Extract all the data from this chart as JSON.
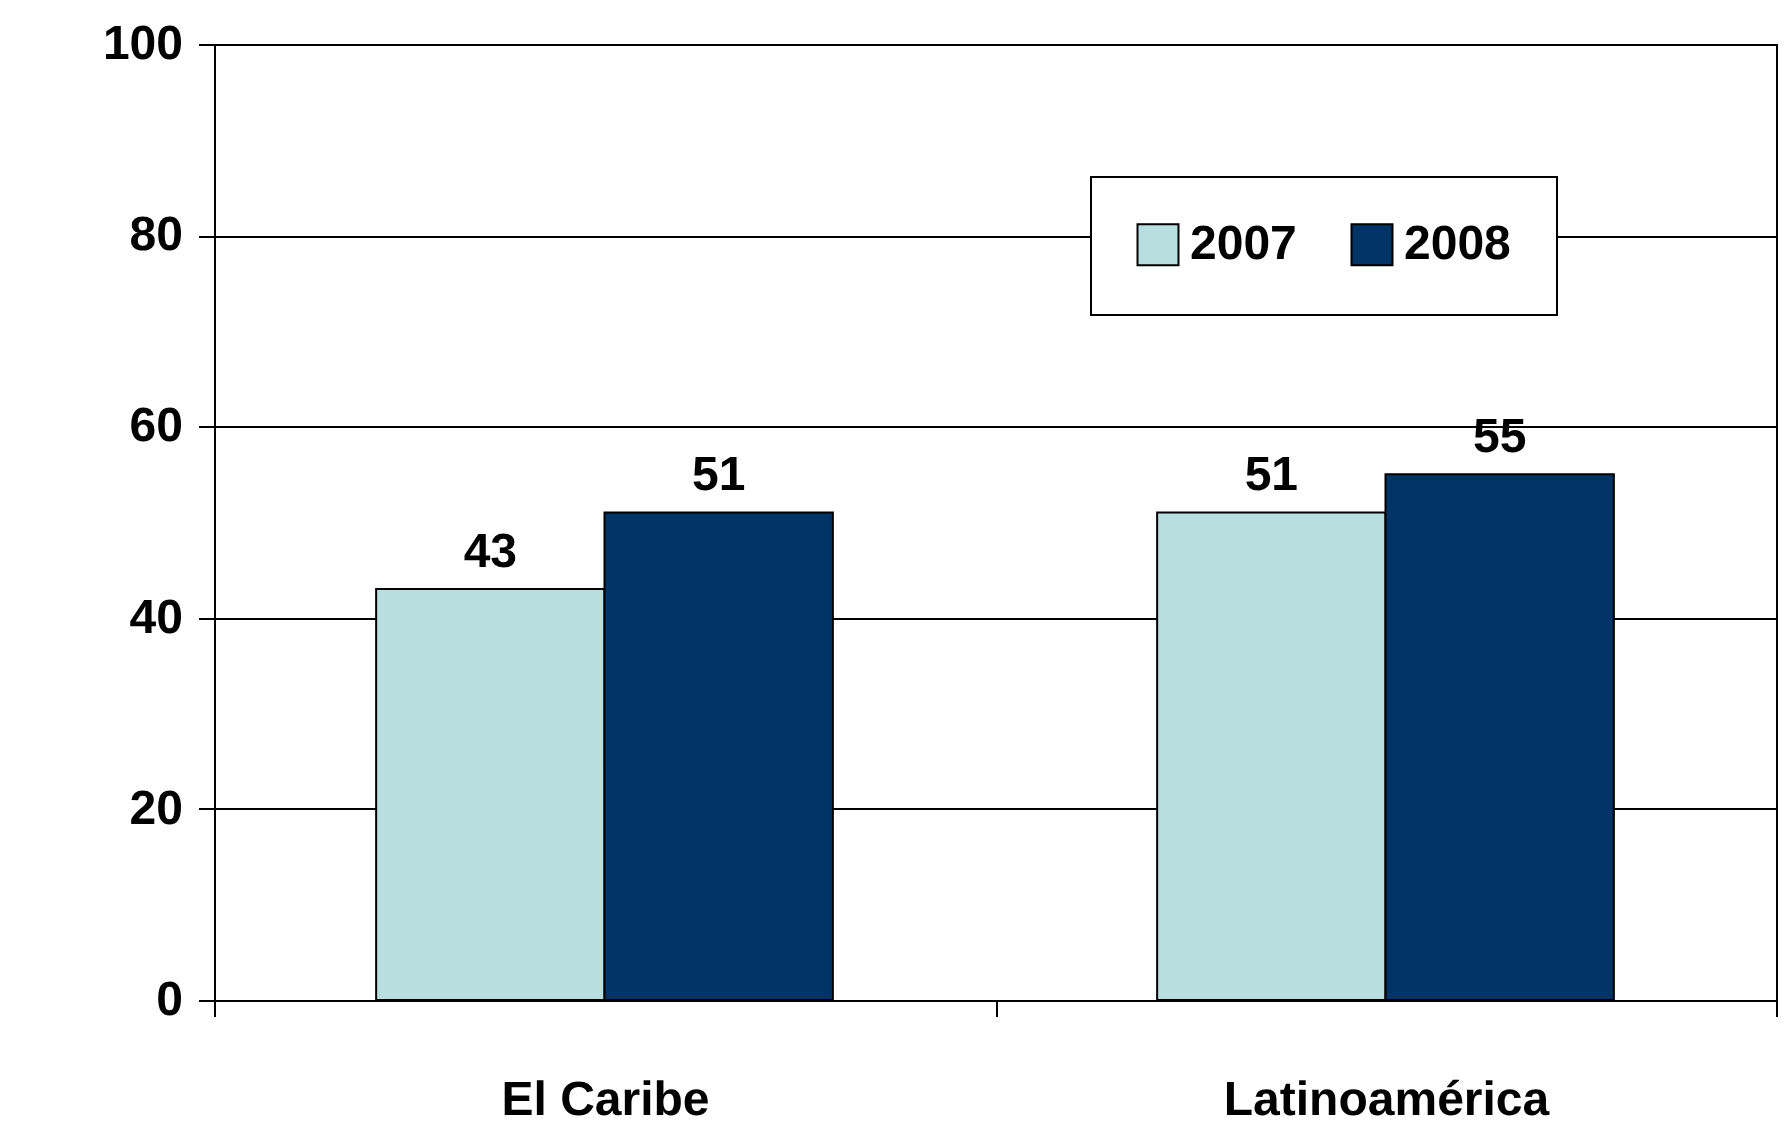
{
  "chart_data": {
    "type": "bar",
    "categories": [
      "El Caribe",
      "Latinoamérica"
    ],
    "series": [
      {
        "name": "2007",
        "color": "#b7dfe0",
        "values": [
          43,
          51
        ]
      },
      {
        "name": "2008",
        "color": "#003366",
        "values": [
          51,
          55
        ]
      }
    ],
    "ylim": [
      0,
      100
    ],
    "yticks": [
      0,
      20,
      40,
      60,
      80,
      100
    ],
    "grid": "y",
    "legend": "top right",
    "data_labels": true
  }
}
